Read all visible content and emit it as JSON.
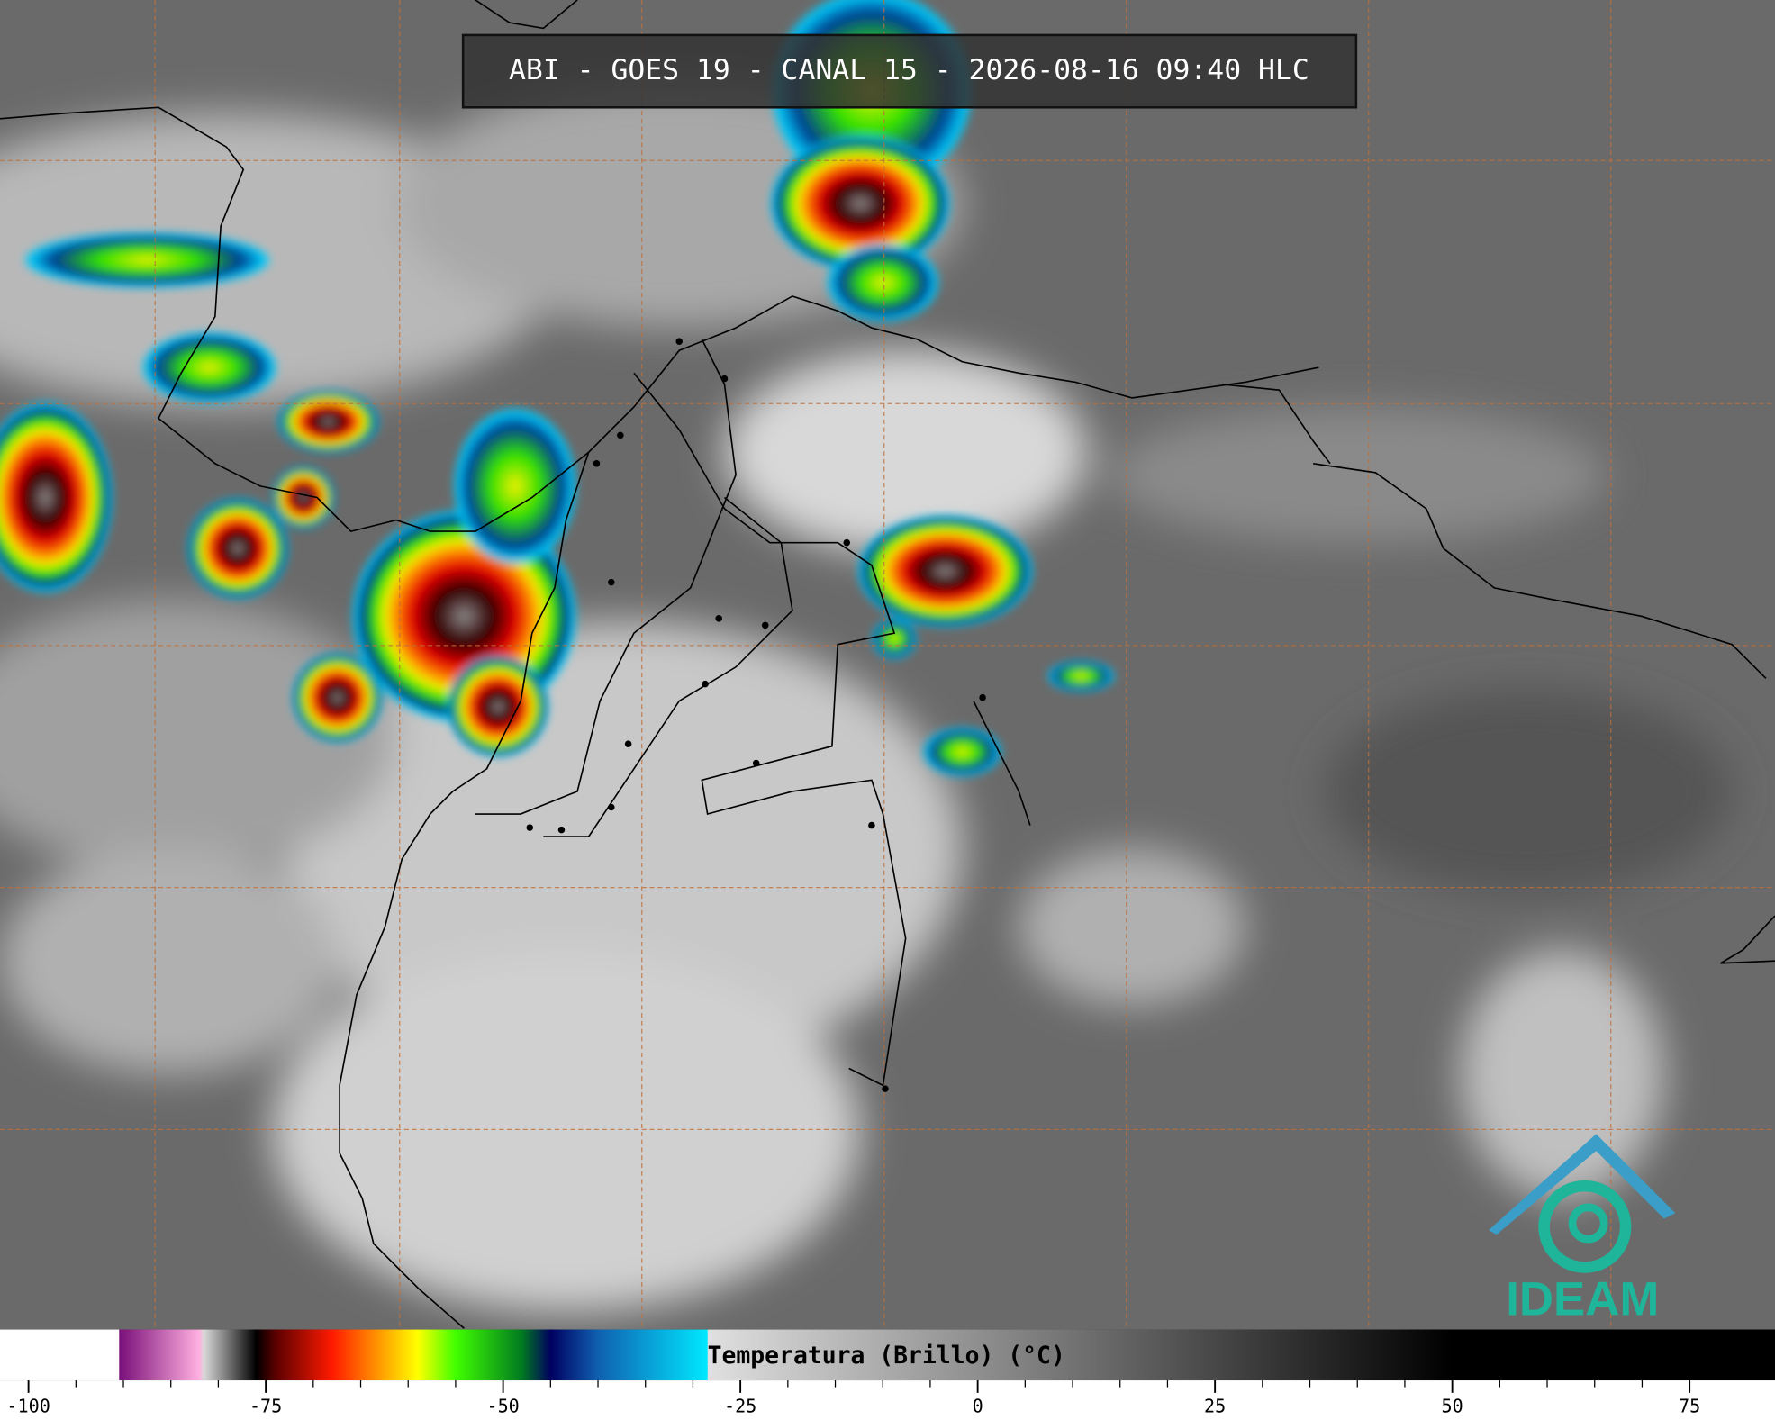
{
  "header": {
    "title": "ABI - GOES 19 - CANAL 15 - 2026-08-16 09:40 HLC"
  },
  "colorbar": {
    "label": "Temperatura (Brillo) (°C)",
    "lim": [
      -103,
      84
    ],
    "ticks": [
      -100,
      -75,
      -50,
      -25,
      0,
      25,
      50,
      75
    ],
    "stops": [
      {
        "value": -90.5,
        "color": "#ffffff"
      },
      {
        "value": -90.4,
        "color": "#7a0f7a"
      },
      {
        "value": -82,
        "color": "#ffb0e0"
      },
      {
        "value": -81.5,
        "color": "#d8d8d8"
      },
      {
        "value": -76,
        "color": "#000000"
      },
      {
        "value": -74,
        "color": "#5a0000"
      },
      {
        "value": -68,
        "color": "#ff1a00"
      },
      {
        "value": -63,
        "color": "#ff9a00"
      },
      {
        "value": -59,
        "color": "#ffff00"
      },
      {
        "value": -55,
        "color": "#40ff00"
      },
      {
        "value": -48,
        "color": "#007a20"
      },
      {
        "value": -45,
        "color": "#000060"
      },
      {
        "value": -40,
        "color": "#1060b0"
      },
      {
        "value": -28.5,
        "color": "#00e8ff"
      },
      {
        "value": -28.4,
        "color": "#e0e0e0"
      },
      {
        "value": 50,
        "color": "#000000"
      },
      {
        "value": 84,
        "color": "#000000"
      }
    ]
  },
  "logo": {
    "text": "IDEAM"
  }
}
